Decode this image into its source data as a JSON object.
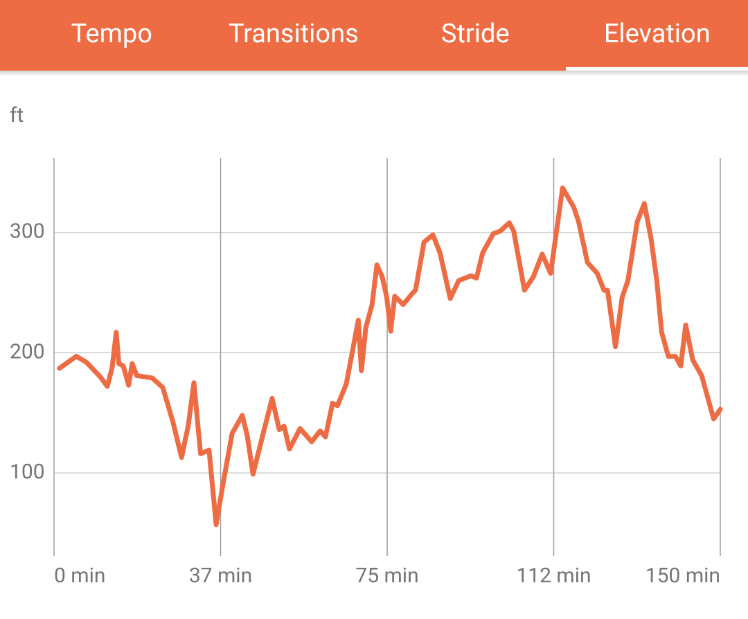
{
  "tabs": {
    "items": [
      "Tempo",
      "Transitions",
      "Stride",
      "Elevation"
    ],
    "selected": 3
  },
  "chart_data": {
    "type": "line",
    "y_label": "ft",
    "x": [
      1.2,
      5,
      7.3,
      10.4,
      12,
      13.1,
      14,
      14.6,
      15.6,
      16.8,
      17.6,
      18.6,
      22.1,
      24.5,
      26.8,
      28.7,
      30.2,
      31.5,
      33,
      34.9,
      36.5,
      38,
      40.1,
      42.4,
      43.5,
      44.8,
      47.1,
      49.1,
      50.7,
      51.8,
      53,
      55.4,
      58,
      59.9,
      61.1,
      62.7,
      63.8,
      65.8,
      68.5,
      69.2,
      70.2,
      71.6,
      72.7,
      73.9,
      74.9,
      75.8,
      76.7,
      78.6,
      80.6,
      81.4,
      83.3,
      85.3,
      86.9,
      89.2,
      91.1,
      93.9,
      95.1,
      96.5,
      98.9,
      100.4,
      102.5,
      103.5,
      105.9,
      107.9,
      109.9,
      111.8,
      114.5,
      117,
      118.1,
      120.1,
      122.3,
      123.8,
      124.6,
      126.4,
      127.9,
      129.2,
      131.3,
      132.9,
      134.4,
      135.7,
      136.8,
      138.3,
      139.9,
      141.1,
      142.2,
      143.8,
      145.8,
      148.5,
      150
    ],
    "series": [
      {
        "name": "Elevation",
        "color": "#ee6c44",
        "values": [
          187,
          197,
          192,
          180,
          172,
          188,
          217,
          191,
          189,
          173,
          191,
          181,
          179,
          171,
          142,
          113,
          139,
          175,
          116,
          119,
          57,
          90,
          133,
          148,
          131,
          99,
          133,
          162,
          136,
          139,
          120,
          137,
          126,
          135,
          130,
          158,
          156,
          174,
          227,
          185,
          221,
          240,
          273,
          263,
          246,
          218,
          247,
          240,
          249,
          252,
          292,
          298,
          283,
          245,
          260,
          264,
          262,
          283,
          299,
          301,
          308,
          301,
          252,
          263,
          282,
          266,
          337,
          321,
          309,
          275,
          266,
          252,
          252,
          205,
          246,
          260,
          309,
          324,
          295,
          260,
          217,
          197,
          197,
          189,
          223,
          194,
          181,
          145,
          153
        ]
      }
    ],
    "xlim": [
      0,
      150
    ],
    "xticks": [
      {
        "value": 0,
        "label": "0 min"
      },
      {
        "value": 37.5,
        "label": "37 min"
      },
      {
        "value": 75,
        "label": "75 min"
      },
      {
        "value": 112.5,
        "label": "112 min"
      },
      {
        "value": 150,
        "label": "150 min"
      }
    ],
    "ylim": [
      31,
      362
    ],
    "yticks": [
      100,
      200,
      300
    ],
    "grid": true
  }
}
